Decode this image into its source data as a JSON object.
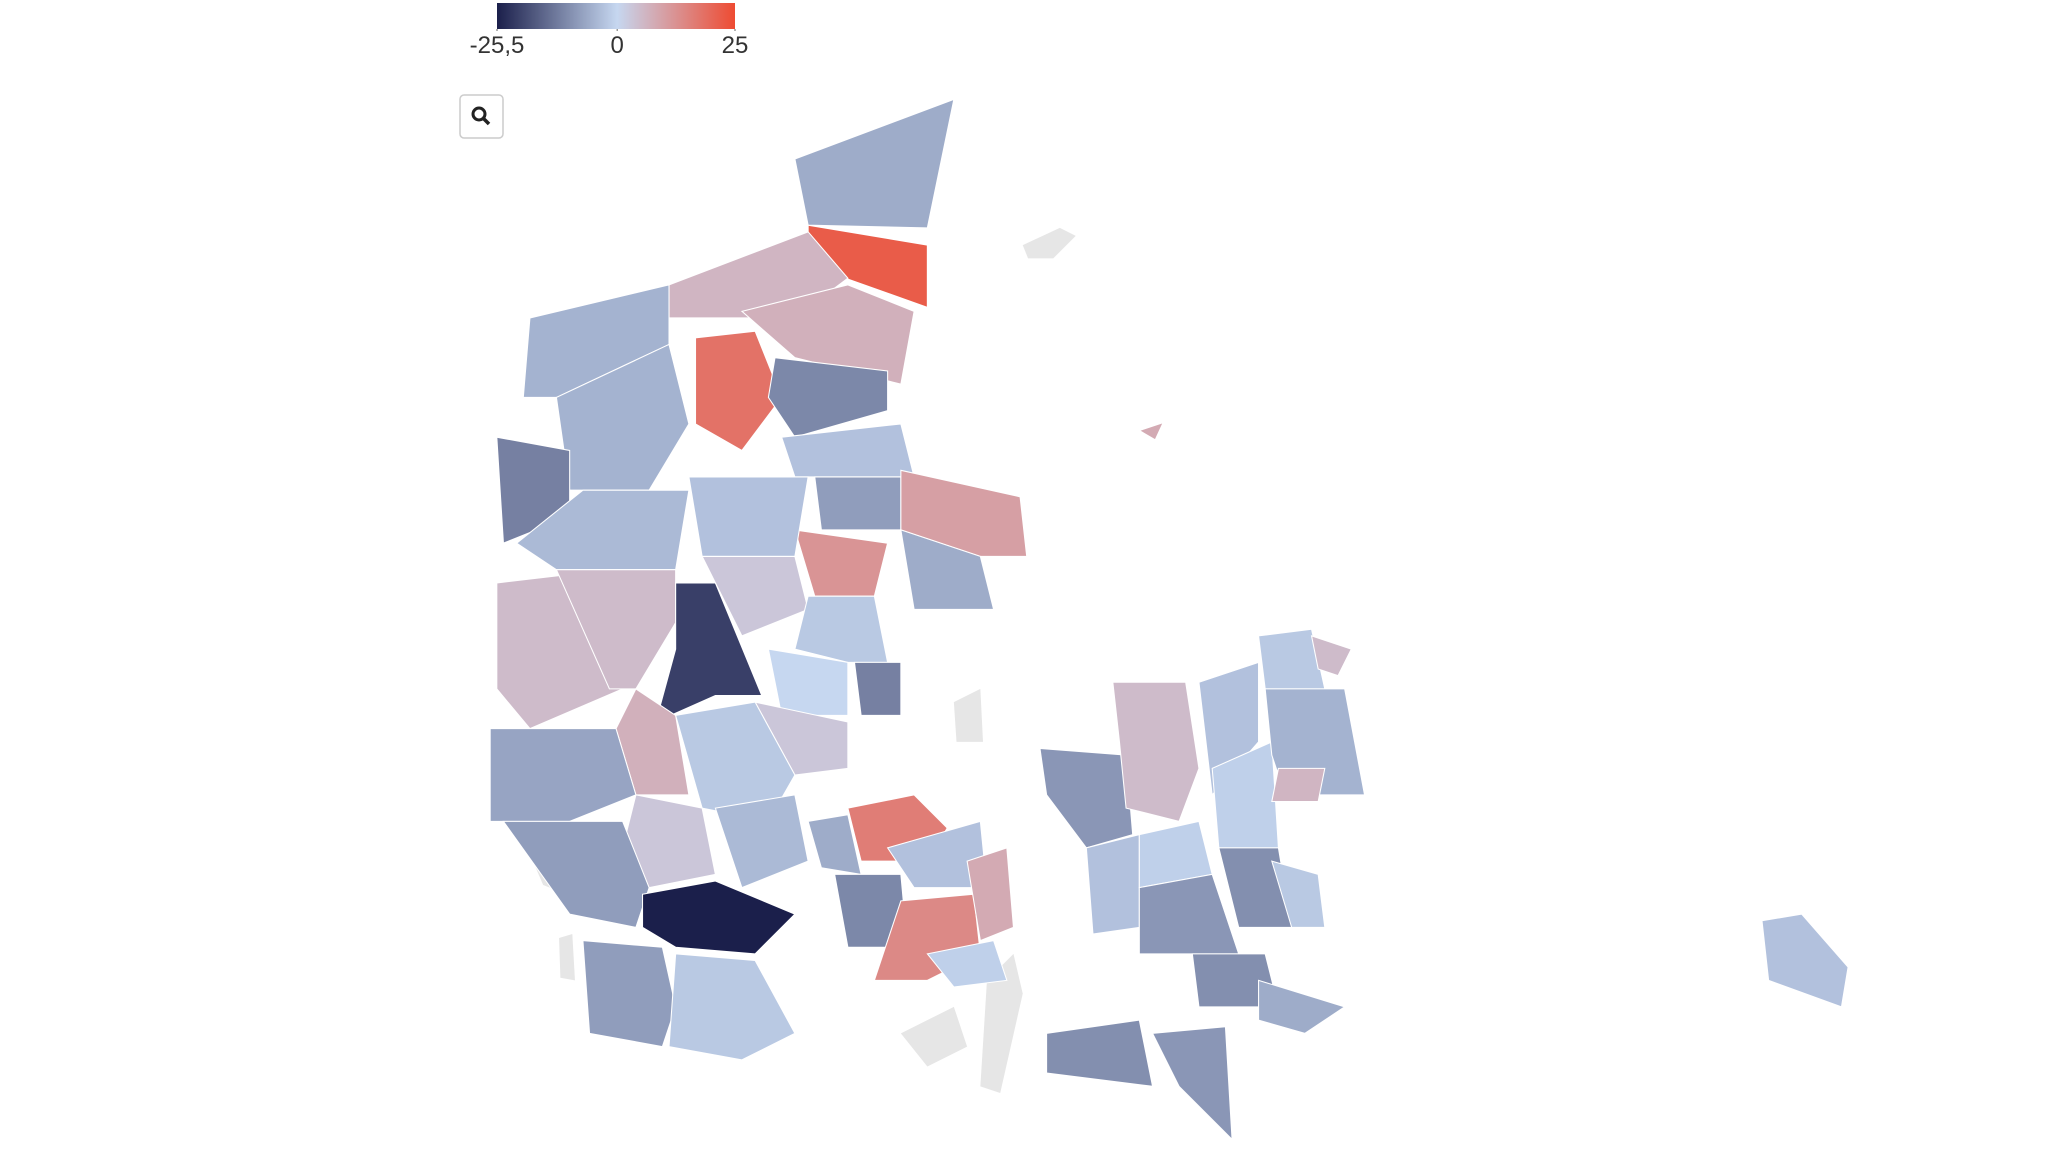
{
  "chart_data": {
    "type": "choropleth",
    "colorbar": {
      "ticks": [
        {
          "value": -25.5,
          "label": "-25,5"
        },
        0,
        25
      ],
      "colors": [
        "#1b1f4b",
        "#c6d7f0",
        "#ee4b32"
      ]
    },
    "values": [
      -6,
      22,
      6,
      7,
      18,
      -11,
      -5,
      -5,
      -12,
      -3,
      -8,
      10,
      12,
      -6,
      -4,
      -3,
      5,
      5,
      -21,
      3,
      -2,
      0,
      -12,
      3,
      7,
      -7,
      -2,
      3,
      -4,
      -8,
      -25.5,
      -8,
      -2,
      16,
      -6,
      -11,
      -3,
      14,
      8,
      -1,
      -9,
      5,
      -3,
      -1,
      -3,
      -1,
      -2,
      5,
      -5,
      6,
      -9,
      -10,
      -2,
      -10,
      -10,
      -9,
      -6,
      -3,
      8
    ]
  }
}
